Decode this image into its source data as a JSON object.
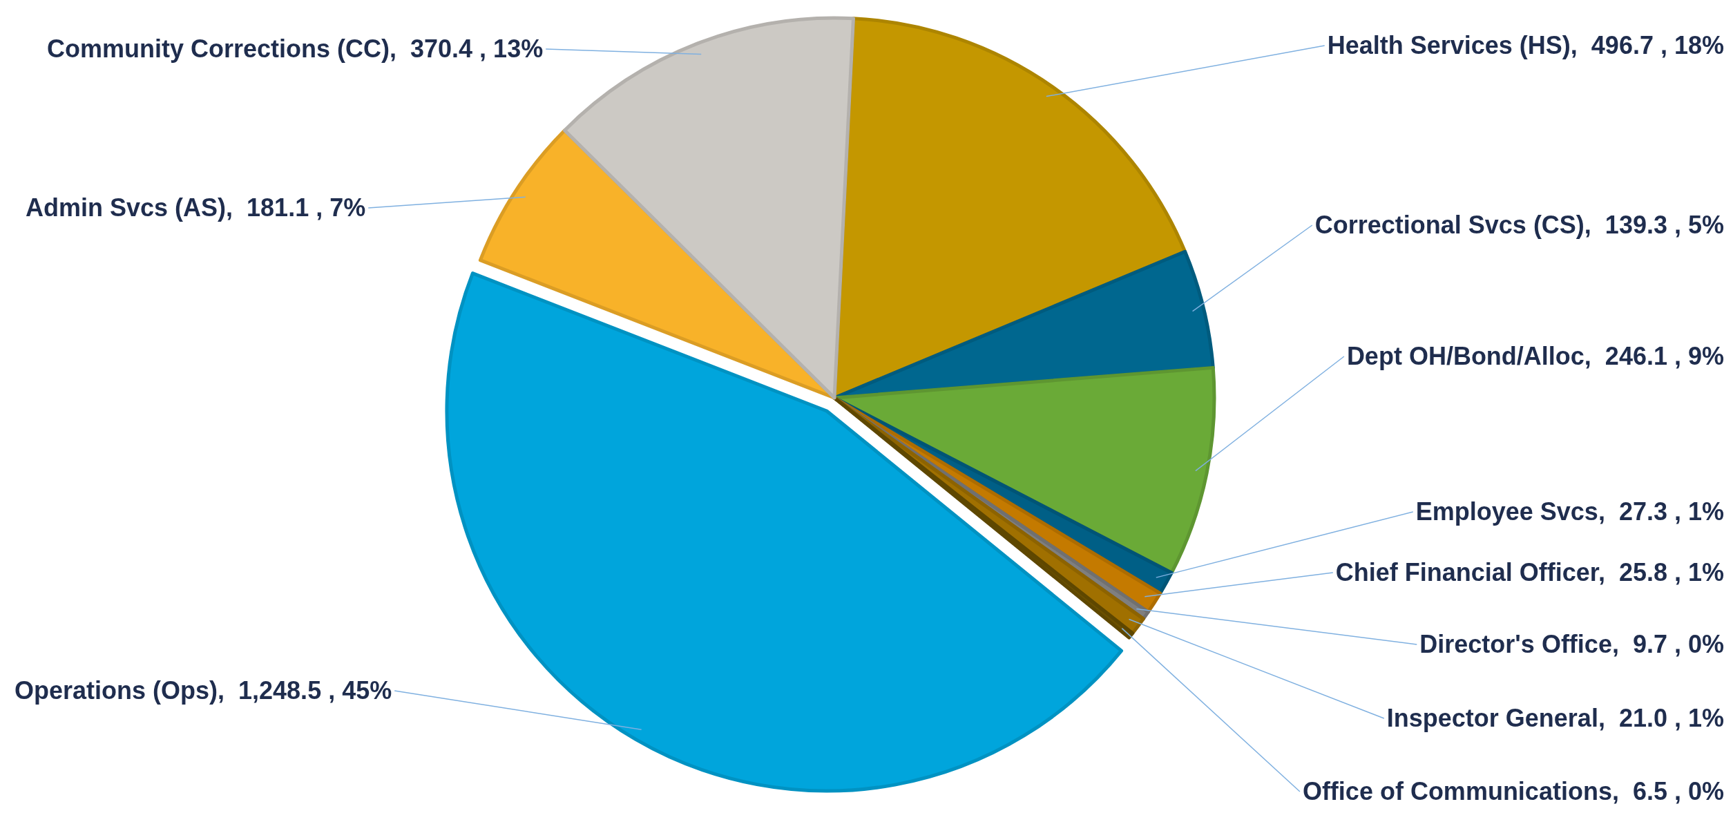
{
  "chart_data": {
    "type": "pie",
    "categories": [
      "Health Services (HS)",
      "Correctional Svcs (CS)",
      "Dept OH/Bond/Alloc",
      "Employee Svcs",
      "Chief Financial Officer",
      "Director's Office",
      "Inspector General",
      "Office of Communications",
      "Operations (Ops)",
      "Admin Svcs (AS)",
      "Community Corrections (CC)"
    ],
    "values": [
      496.7,
      139.3,
      246.1,
      27.3,
      25.8,
      9.7,
      21.0,
      6.5,
      1248.5,
      181.1,
      370.4
    ],
    "value_labels": [
      "496.7 , 18%",
      "139.3 , 5%",
      "246.1 , 9%",
      "27.3 , 1%",
      "25.8 , 1%",
      "9.7 , 0%",
      "21.0 , 1%",
      "6.5 , 0%",
      "1,248.5 , 45%",
      "181.1 , 7%",
      "370.4 , 13%"
    ],
    "colors": [
      "#c49700",
      "#00678f",
      "#6aaa37",
      "#005f86",
      "#c47a00",
      "#7f7f7f",
      "#a07000",
      "#6b5000",
      "#00a5dc",
      "#f8b229",
      "#ccc9c4"
    ]
  }
}
